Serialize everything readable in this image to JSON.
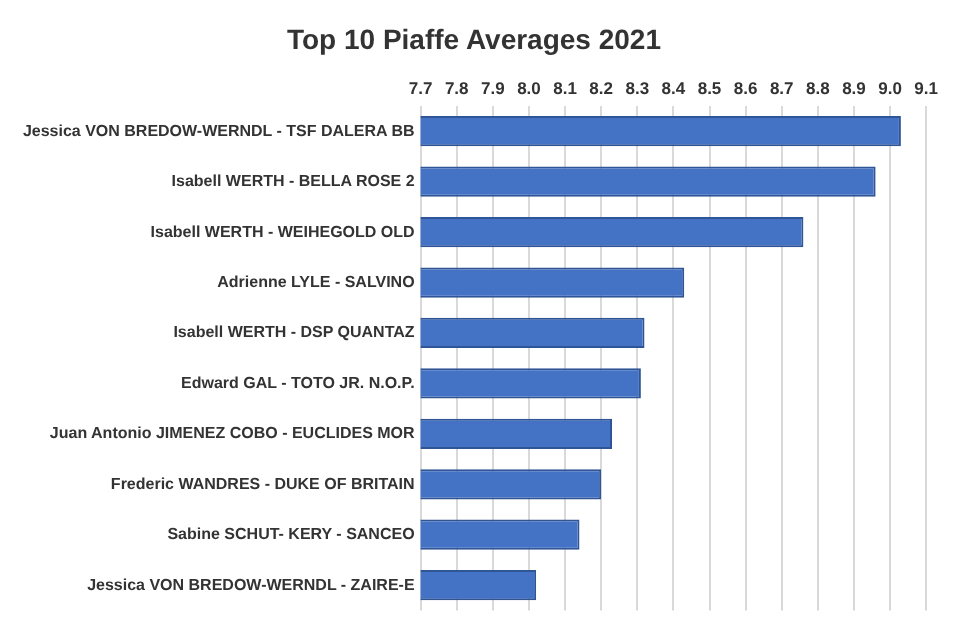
{
  "chart_data": {
    "type": "bar",
    "orientation": "horizontal",
    "title": "Top 10 Piaffe Averages 2021",
    "categories": [
      "Jessica VON BREDOW-WERNDL - TSF DALERA BB",
      "Isabell WERTH - BELLA ROSE 2",
      "Isabell WERTH - WEIHEGOLD OLD",
      "Adrienne LYLE - SALVINO",
      "Isabell WERTH - DSP QUANTAZ",
      "Edward GAL - TOTO JR. N.O.P.",
      "Juan Antonio JIMENEZ COBO - EUCLIDES MOR",
      "Frederic WANDRES - DUKE OF BRITAIN",
      "Sabine SCHUT- KERY - SANCEO",
      "Jessica VON BREDOW-WERNDL - ZAIRE-E"
    ],
    "values": [
      9.03,
      8.96,
      8.76,
      8.43,
      8.32,
      8.31,
      8.23,
      8.2,
      8.14,
      8.02
    ],
    "color": "#4472c4",
    "xlim": [
      7.7,
      9.1
    ],
    "xticks": [
      7.7,
      7.8,
      7.9,
      {
        "value": 8,
        "label": "8.0"
      },
      8.1,
      8.2,
      8.3,
      8.4,
      8.5,
      8.6,
      8.7,
      8.8,
      8.9,
      {
        "value": 9,
        "label": "9.0"
      },
      9.1
    ],
    "grid": "x"
  }
}
